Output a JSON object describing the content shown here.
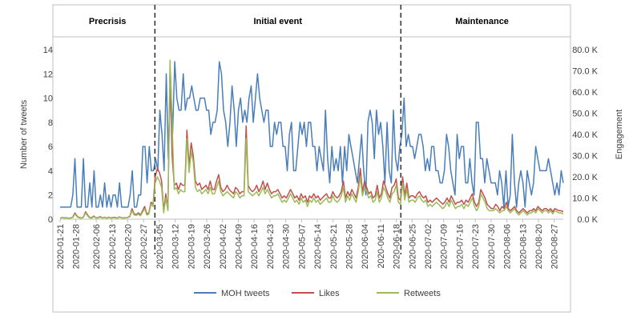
{
  "chart_data": {
    "type": "line",
    "title": "",
    "phases": [
      "Precrisis",
      "Initial event",
      "Maintenance"
    ],
    "phase_boundaries": [
      "2020-03-03",
      "2020-06-20"
    ],
    "x_start": "2020-01-21",
    "x_end": "2020-08-31",
    "x_ticks": [
      "2020-01-21",
      "2020-01-28",
      "2020-02-06",
      "2020-02-13",
      "2020-02-20",
      "2020-02-27",
      "2020-03-05",
      "2020-03-12",
      "2020-03-19",
      "2020-03-26",
      "2020-04-02",
      "2020-04-09",
      "2020-04-16",
      "2020-04-23",
      "2020-04-30",
      "2020-05-07",
      "2020-05-14",
      "2020-05-21",
      "2020-05-28",
      "2020-06-04",
      "2020-06-11",
      "2020-06-18",
      "2020-06-25",
      "2020-07-02",
      "2020-07-09",
      "2020-07-16",
      "2020-07-23",
      "2020-07-30",
      "2020-08-06",
      "2020-08-13",
      "2020-08-20",
      "2020-08-27"
    ],
    "ylabel_left": "Number of tweets",
    "ylabel_right": "Engagement",
    "ylim_left": [
      0,
      14
    ],
    "ylim_right": [
      0,
      80
    ],
    "y_ticks_left": [
      "0",
      "2",
      "4",
      "6",
      "8",
      "10",
      "12",
      "14"
    ],
    "y_ticks_right": [
      "0.0 K",
      "10.0 K",
      "20.0 K",
      "30.0 K",
      "40.0 K",
      "50.0 K",
      "60.0 K",
      "70.0 K",
      "80.0 K"
    ],
    "series": [
      {
        "name": "MOH tweets",
        "axis": "left",
        "color": "#4a7ebb",
        "values": [
          1,
          1,
          1,
          1,
          1,
          1,
          2,
          5,
          1,
          1,
          1,
          5,
          1,
          1,
          3,
          1,
          4,
          1,
          1,
          2,
          1,
          3,
          1,
          2,
          1,
          2,
          2,
          1,
          3,
          1,
          1,
          1,
          1,
          2,
          4,
          1,
          1,
          2,
          2,
          6,
          6,
          3,
          6,
          4,
          4,
          5,
          4,
          9,
          7,
          4,
          12,
          5,
          12,
          7,
          13,
          10,
          9,
          9,
          12,
          9,
          10,
          10,
          11,
          10,
          9,
          9,
          10,
          10,
          10,
          9,
          9,
          7,
          8,
          8,
          9,
          13,
          12,
          9,
          8,
          6,
          8,
          11,
          9,
          6,
          9,
          10,
          8,
          9,
          8,
          10,
          11,
          8,
          10,
          12,
          10,
          9,
          8,
          9,
          9,
          6,
          6,
          8,
          7,
          8,
          8,
          6,
          6,
          4,
          7,
          8,
          4,
          4,
          6,
          8,
          7,
          8,
          6,
          8,
          8,
          6,
          6,
          4,
          6,
          5,
          4,
          9,
          5,
          3,
          6,
          4,
          5,
          4,
          6,
          3,
          6,
          4,
          7,
          6,
          5,
          4,
          3,
          5,
          7,
          4,
          2,
          8,
          9,
          8,
          5,
          9,
          7,
          8,
          6,
          3,
          8,
          4,
          3,
          9,
          5,
          4,
          6,
          7,
          10,
          6,
          7,
          6,
          6,
          5,
          6,
          7,
          7,
          6,
          4,
          5,
          4,
          6,
          6,
          4,
          4,
          3,
          3,
          4,
          7,
          6,
          4,
          3,
          2,
          7,
          5,
          6,
          6,
          3,
          3,
          5,
          3,
          2,
          8,
          8,
          5,
          5,
          3,
          5,
          4,
          3,
          3,
          3,
          2,
          4,
          3,
          1,
          4,
          1,
          2,
          7,
          3,
          1,
          3,
          4,
          3,
          1,
          4,
          3,
          2,
          3,
          6,
          5,
          4,
          4,
          4,
          4,
          5,
          4,
          3,
          2,
          3,
          2,
          4,
          3
        ]
      },
      {
        "name": "Likes",
        "axis": "right",
        "color": "#c0504d",
        "values": [
          0.5,
          0.8,
          0.6,
          0.7,
          0.5,
          0.6,
          1,
          3,
          1.5,
          0.8,
          0.6,
          1,
          3.5,
          2,
          0.8,
          0.7,
          1.5,
          0.6,
          0.8,
          1.2,
          0.6,
          1,
          0.5,
          1,
          0.6,
          0.8,
          0.9,
          0.5,
          1.1,
          0.7,
          0.6,
          0.7,
          0.8,
          1.5,
          5,
          2.5,
          2.2,
          3,
          2,
          4,
          6,
          2.5,
          3,
          8,
          7,
          20,
          24,
          22,
          18,
          4,
          12,
          5,
          70,
          30,
          16,
          17,
          14,
          17,
          16,
          16,
          42,
          25,
          36,
          30,
          18,
          16,
          17,
          14,
          15,
          16,
          14,
          18,
          14,
          14,
          18,
          21,
          15,
          13,
          14,
          16,
          14,
          13,
          12,
          15,
          14,
          12,
          13,
          13,
          44,
          16,
          14,
          13,
          14,
          16,
          13,
          15,
          18,
          14,
          17,
          14,
          12,
          13,
          13,
          14,
          12,
          10,
          11,
          10,
          12,
          14,
          12,
          10,
          11,
          9,
          12,
          10,
          11,
          8,
          11,
          10,
          12,
          10,
          11,
          9,
          10,
          11,
          12,
          10,
          10,
          13,
          11,
          10,
          11,
          13,
          18,
          10,
          13,
          11,
          14,
          12,
          10,
          15,
          24,
          13,
          18,
          15,
          12,
          13,
          10,
          11,
          16,
          10,
          12,
          18,
          15,
          12,
          10,
          15,
          16,
          19,
          10,
          9,
          20,
          11,
          17,
          10,
          11,
          11,
          10,
          12,
          13,
          11,
          10,
          11,
          8,
          9,
          8,
          9,
          10,
          9,
          8,
          7,
          8,
          10,
          8,
          11,
          9,
          7,
          8,
          8,
          9,
          7,
          9,
          8,
          10,
          12,
          8,
          6,
          8,
          14,
          12,
          10,
          7,
          6,
          5,
          5,
          7,
          6,
          4,
          6,
          5,
          8,
          5,
          4,
          5,
          6,
          4,
          3,
          4,
          5,
          4,
          3,
          4,
          4,
          5,
          4,
          6,
          5,
          4,
          5,
          5,
          4,
          5,
          3.5,
          5,
          4.5,
          4,
          4,
          3.5
        ]
      },
      {
        "name": "Retweets",
        "axis": "right",
        "color": "#9bbb59",
        "values": [
          0.4,
          0.7,
          0.5,
          0.6,
          0.4,
          0.5,
          0.8,
          2.5,
          1.2,
          0.6,
          0.5,
          0.8,
          3,
          1.6,
          0.6,
          0.5,
          1.2,
          0.5,
          0.6,
          1,
          0.5,
          0.8,
          0.4,
          0.8,
          0.5,
          0.6,
          0.7,
          0.4,
          0.9,
          0.6,
          0.5,
          0.6,
          0.7,
          1.2,
          4,
          2,
          1.8,
          2.4,
          1.6,
          3.3,
          5,
          2,
          2.4,
          7,
          6,
          17,
          20,
          18,
          15,
          3,
          10,
          4,
          75,
          45,
          14,
          15,
          12,
          14,
          13,
          13,
          38,
          22,
          32,
          27,
          15,
          13,
          14,
          12,
          13,
          14,
          12,
          15,
          12,
          12,
          15,
          18,
          13,
          11,
          12,
          13,
          12,
          11,
          10,
          13,
          12,
          10,
          11,
          11,
          38,
          13,
          12,
          11,
          12,
          13,
          11,
          13,
          15,
          12,
          14,
          12,
          10,
          11,
          11,
          12,
          10,
          8,
          9,
          8,
          10,
          12,
          10,
          8,
          9,
          7,
          10,
          8,
          9,
          6,
          9,
          8,
          10,
          8,
          9,
          7,
          8,
          9,
          10,
          8,
          8,
          11,
          9,
          8,
          9,
          11,
          15,
          8,
          11,
          9,
          12,
          10,
          8,
          13,
          20,
          11,
          15,
          13,
          10,
          11,
          8,
          9,
          13,
          8,
          10,
          15,
          13,
          10,
          8,
          12,
          13,
          16,
          8,
          7,
          17,
          9,
          14,
          8,
          9,
          9,
          8,
          10,
          11,
          9,
          8,
          9,
          6,
          7,
          6,
          7,
          8,
          7,
          6,
          5,
          6,
          8,
          6,
          9,
          7,
          5,
          6,
          6,
          7,
          5,
          7,
          6,
          8,
          10,
          6,
          4,
          6,
          12,
          10,
          8,
          5,
          4,
          4,
          4,
          5,
          4,
          3,
          4,
          4,
          6,
          4,
          3,
          4,
          5,
          3,
          2,
          3,
          4,
          3,
          2,
          3,
          3,
          4,
          3,
          5,
          4,
          3,
          4,
          4,
          3,
          4,
          2.5,
          4,
          3.5,
          3,
          3,
          2.5
        ]
      }
    ],
    "legend_position": "bottom",
    "grid": false
  }
}
